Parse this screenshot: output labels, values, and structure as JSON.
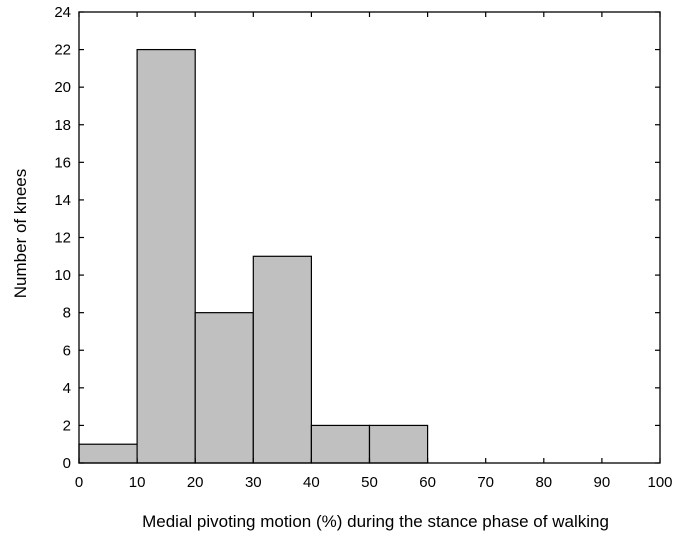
{
  "chart_data": {
    "type": "bar",
    "bins": [
      {
        "from": 0,
        "to": 10,
        "value": 1
      },
      {
        "from": 10,
        "to": 20,
        "value": 22
      },
      {
        "from": 20,
        "to": 30,
        "value": 8
      },
      {
        "from": 30,
        "to": 40,
        "value": 11
      },
      {
        "from": 40,
        "to": 50,
        "value": 2
      },
      {
        "from": 50,
        "to": 60,
        "value": 2
      },
      {
        "from": 60,
        "to": 70,
        "value": 0
      },
      {
        "from": 70,
        "to": 80,
        "value": 0
      },
      {
        "from": 80,
        "to": 90,
        "value": 0
      },
      {
        "from": 90,
        "to": 100,
        "value": 0
      }
    ],
    "xlabel": "Medial pivoting motion (%) during the stance phase of walking",
    "ylabel": "Number of knees",
    "xlim": [
      0,
      100
    ],
    "ylim": [
      0,
      24
    ],
    "x_ticks": [
      "0",
      "10",
      "20",
      "30",
      "40",
      "50",
      "60",
      "70",
      "80",
      "90",
      "100"
    ],
    "y_ticks": [
      "0",
      "2",
      "4",
      "6",
      "8",
      "10",
      "12",
      "14",
      "16",
      "18",
      "20",
      "22",
      "24"
    ],
    "bar_color": "#c0c0c0",
    "grid": false
  }
}
